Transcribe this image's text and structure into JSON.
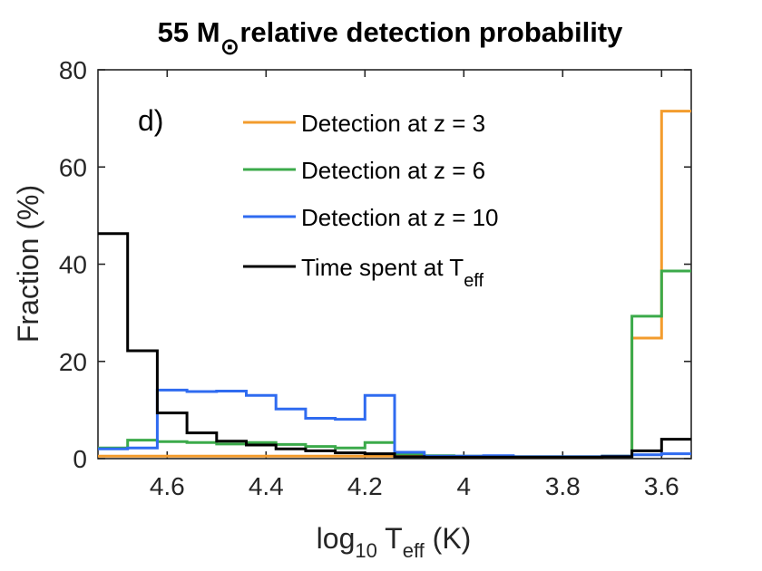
{
  "chart_data": {
    "type": "line",
    "style": "stairs",
    "title": {
      "prefix": "55 M",
      "subscript": "⊙",
      "suffix": "relative detection probability"
    },
    "panel_label": "d)",
    "xlabel": {
      "base": "log",
      "sub1": "10",
      "mid": " T",
      "sub2": "eff",
      "tail": " (K)"
    },
    "ylabel": "Fraction (%)",
    "xlim": [
      4.74,
      3.54
    ],
    "x_reversed": true,
    "ylim": [
      0,
      80
    ],
    "xticks": [
      4.6,
      4.4,
      4.2,
      4.0,
      3.8,
      3.6
    ],
    "xtick_labels": [
      "4.6",
      "4.4",
      "4.2",
      "4",
      "3.8",
      "3.6"
    ],
    "yticks": [
      0,
      20,
      40,
      60,
      80
    ],
    "ytick_labels": [
      "0",
      "20",
      "40",
      "60",
      "80"
    ],
    "bin_edges": [
      4.74,
      4.68,
      4.62,
      4.56,
      4.5,
      4.44,
      4.38,
      4.32,
      4.26,
      4.2,
      4.14,
      4.08,
      4.02,
      3.96,
      3.9,
      3.84,
      3.78,
      3.72,
      3.66,
      3.6,
      3.54
    ],
    "series": [
      {
        "name": "Detection at z = 3",
        "color": "#F39C2D",
        "values": [
          0.5,
          0.5,
          0.5,
          0.5,
          0.5,
          0.5,
          0.5,
          0.5,
          0.5,
          0.5,
          0.5,
          0.3,
          0.3,
          0.3,
          0.3,
          0.3,
          0.3,
          0.5,
          24.8,
          71.5
        ]
      },
      {
        "name": "Detection at z = 6",
        "color": "#3BAA4A",
        "values": [
          2.2,
          3.8,
          3.5,
          3.3,
          3.0,
          3.3,
          2.9,
          2.5,
          2.2,
          3.3,
          1.0,
          0.6,
          0.5,
          0.5,
          0.4,
          0.4,
          0.4,
          0.5,
          29.3,
          38.6
        ]
      },
      {
        "name": "Detection at z = 10",
        "color": "#2F6BF0",
        "values": [
          2.0,
          2.2,
          14.1,
          13.8,
          13.9,
          13.0,
          10.2,
          8.3,
          8.1,
          13.0,
          1.3,
          0.5,
          0.5,
          0.6,
          0.4,
          0.4,
          0.4,
          0.5,
          0.8,
          1.0
        ]
      },
      {
        "name": "Time spent at T",
        "name_sub": "eff",
        "color": "#000000",
        "values": [
          46.3,
          22.2,
          9.4,
          5.3,
          3.6,
          2.8,
          2.0,
          1.6,
          1.2,
          1.0,
          0.4,
          0.3,
          0.3,
          0.3,
          0.3,
          0.3,
          0.3,
          0.4,
          1.6,
          4.0
        ]
      }
    ],
    "legend_position": "top-right"
  }
}
